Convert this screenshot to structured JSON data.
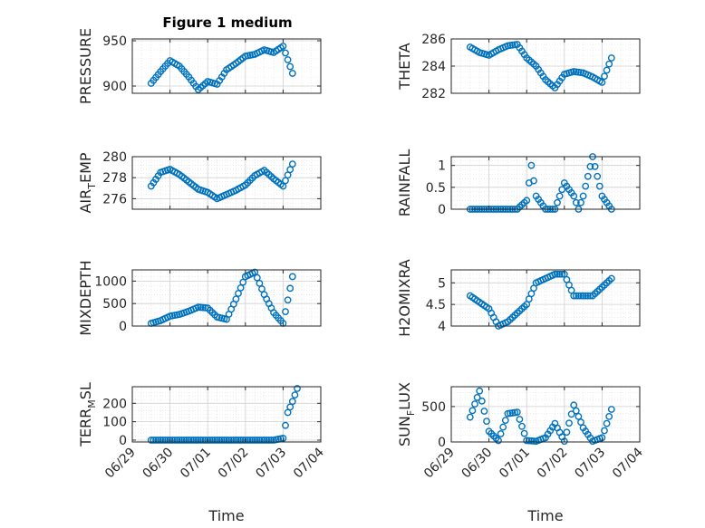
{
  "figure_title": "Figure 1 medium",
  "x_axis_label": "Time",
  "colors": {
    "marker": "#0072BD",
    "grid": "#dfdfdf",
    "axis": "#262626"
  },
  "chart_data": [
    {
      "type": "scatter",
      "ylabel": "PRESSURE",
      "ylabel_main": "PRESSURE",
      "ylabel_sub": "",
      "ylabel_tail": "",
      "ylim": [
        892,
        952
      ],
      "yticks": [
        900,
        950
      ],
      "ytick_labels": [
        "900",
        "950"
      ],
      "title": "Figure 1 medium",
      "x": [
        "06/29 12:00",
        "06/29 18:00",
        "06/30 00:00",
        "06/30 06:00",
        "06/30 12:00",
        "06/30 18:00",
        "07/01 00:00",
        "07/01 06:00",
        "07/01 12:00",
        "07/01 18:00",
        "07/02 00:00",
        "07/02 06:00",
        "07/02 12:00",
        "07/02 18:00",
        "07/03 00:00",
        "07/03 06:00"
      ],
      "y": [
        903,
        916,
        928,
        922,
        910,
        896,
        905,
        902,
        918,
        925,
        933,
        935,
        940,
        937,
        944,
        914
      ]
    },
    {
      "type": "scatter",
      "ylabel": "THETA",
      "ylabel_main": "THETA",
      "ylabel_sub": "",
      "ylabel_tail": "",
      "ylim": [
        282,
        286
      ],
      "yticks": [
        282,
        284,
        286
      ],
      "ytick_labels": [
        "282",
        "284",
        "286"
      ],
      "x": [
        "06/29 12:00",
        "06/29 18:00",
        "06/30 00:00",
        "06/30 06:00",
        "06/30 12:00",
        "06/30 18:00",
        "07/01 00:00",
        "07/01 06:00",
        "07/01 12:00",
        "07/01 18:00",
        "07/02 00:00",
        "07/02 06:00",
        "07/02 12:00",
        "07/02 18:00",
        "07/03 00:00",
        "07/03 06:00"
      ],
      "y": [
        285.4,
        285.0,
        284.8,
        285.2,
        285.5,
        285.6,
        284.6,
        284.0,
        283.0,
        282.4,
        283.4,
        283.6,
        283.5,
        283.2,
        282.8,
        284.6
      ]
    },
    {
      "type": "scatter",
      "ylabel": "AIR_TEMP",
      "ylabel_main": "AIR",
      "ylabel_sub": "T",
      "ylabel_tail": "EMP",
      "ylim": [
        275,
        280
      ],
      "yticks": [
        276,
        278,
        280
      ],
      "ytick_labels": [
        "276",
        "278",
        "280"
      ],
      "x": [
        "06/29 12:00",
        "06/29 18:00",
        "06/30 00:00",
        "06/30 06:00",
        "06/30 12:00",
        "06/30 18:00",
        "07/01 00:00",
        "07/01 06:00",
        "07/01 12:00",
        "07/01 18:00",
        "07/02 00:00",
        "07/02 06:00",
        "07/02 12:00",
        "07/02 18:00",
        "07/03 00:00",
        "07/03 06:00"
      ],
      "y": [
        277.2,
        278.5,
        278.8,
        278.3,
        277.6,
        276.9,
        276.6,
        276.0,
        276.4,
        276.8,
        277.3,
        278.2,
        278.7,
        277.9,
        277.2,
        279.3
      ]
    },
    {
      "type": "scatter",
      "ylabel": "RAINFALL",
      "ylabel_main": "RAINFALL",
      "ylabel_sub": "",
      "ylabel_tail": "",
      "ylim": [
        0,
        1.2
      ],
      "yticks": [
        0,
        0.5,
        1
      ],
      "ytick_labels": [
        "0",
        "0.5",
        "1"
      ],
      "x": [
        "06/29 12:00",
        "06/29 18:00",
        "06/30 00:00",
        "06/30 06:00",
        "06/30 12:00",
        "06/30 18:00",
        "07/01 00:00",
        "07/01 03:00",
        "07/01 06:00",
        "07/01 12:00",
        "07/01 18:00",
        "07/02 00:00",
        "07/02 06:00",
        "07/02 09:00",
        "07/02 12:00",
        "07/02 18:00",
        "07/03 00:00",
        "07/03 06:00"
      ],
      "y": [
        0,
        0,
        0,
        0,
        0,
        0,
        0.2,
        1.0,
        0.3,
        0,
        0,
        0.6,
        0.3,
        0,
        0.3,
        1.2,
        0.3,
        0
      ]
    },
    {
      "type": "scatter",
      "ylabel": "MIXDEPTH",
      "ylabel_main": "MIXDEPTH",
      "ylabel_sub": "",
      "ylabel_tail": "",
      "ylim": [
        0,
        1250
      ],
      "yticks": [
        0,
        500,
        1000
      ],
      "ytick_labels": [
        "0",
        "500",
        "1000"
      ],
      "x": [
        "06/29 12:00",
        "06/29 18:00",
        "06/30 00:00",
        "06/30 06:00",
        "06/30 12:00",
        "06/30 18:00",
        "07/01 00:00",
        "07/01 06:00",
        "07/01 12:00",
        "07/01 18:00",
        "07/02 00:00",
        "07/02 06:00",
        "07/02 12:00",
        "07/02 18:00",
        "07/03 00:00",
        "07/03 06:00"
      ],
      "y": [
        60,
        120,
        220,
        260,
        330,
        420,
        400,
        200,
        150,
        600,
        1100,
        1200,
        700,
        300,
        60,
        1100
      ]
    },
    {
      "type": "scatter",
      "ylabel": "H2OMIXRA",
      "ylabel_main": "H2OMIXRA",
      "ylabel_sub": "",
      "ylabel_tail": "",
      "ylim": [
        4,
        5.3
      ],
      "yticks": [
        4,
        4.5,
        5
      ],
      "ytick_labels": [
        "4",
        "4.5",
        "5"
      ],
      "x": [
        "06/29 12:00",
        "06/29 18:00",
        "06/30 00:00",
        "06/30 06:00",
        "06/30 12:00",
        "06/30 18:00",
        "07/01 00:00",
        "07/01 06:00",
        "07/01 12:00",
        "07/01 18:00",
        "07/02 00:00",
        "07/02 06:00",
        "07/02 12:00",
        "07/02 18:00",
        "07/03 00:00",
        "07/03 06:00"
      ],
      "y": [
        4.7,
        4.55,
        4.4,
        4.0,
        4.1,
        4.3,
        4.5,
        5.0,
        5.1,
        5.2,
        5.2,
        4.7,
        4.7,
        4.7,
        4.9,
        5.1
      ]
    },
    {
      "type": "scatter",
      "ylabel": "TERR_MSL",
      "ylabel_main": "TERR",
      "ylabel_sub": "M",
      "ylabel_tail": "SL",
      "ylim": [
        -10,
        290
      ],
      "yticks": [
        0,
        100,
        200
      ],
      "ytick_labels": [
        "0",
        "100",
        "200"
      ],
      "x": [
        "06/29 12:00",
        "06/29 18:00",
        "06/30 00:00",
        "06/30 06:00",
        "06/30 12:00",
        "06/30 18:00",
        "07/01 00:00",
        "07/01 06:00",
        "07/01 12:00",
        "07/01 18:00",
        "07/02 00:00",
        "07/02 06:00",
        "07/02 12:00",
        "07/02 18:00",
        "07/03 00:00",
        "07/03 03:00",
        "07/03 06:00",
        "07/03 09:00"
      ],
      "y": [
        0,
        0,
        0,
        0,
        0,
        0,
        0,
        0,
        0,
        0,
        0,
        0,
        0,
        0,
        10,
        150,
        210,
        280
      ]
    },
    {
      "type": "scatter",
      "ylabel": "SUN_FLUX",
      "ylabel_main": "SUN",
      "ylabel_sub": "F",
      "ylabel_tail": "LUX",
      "ylim": [
        0,
        780
      ],
      "yticks": [
        0,
        500
      ],
      "ytick_labels": [
        "0",
        "500"
      ],
      "x": [
        "06/29 12:00",
        "06/29 18:00",
        "06/30 00:00",
        "06/30 06:00",
        "06/30 12:00",
        "06/30 18:00",
        "07/01 00:00",
        "07/01 06:00",
        "07/01 12:00",
        "07/01 18:00",
        "07/02 00:00",
        "07/02 06:00",
        "07/02 12:00",
        "07/02 18:00",
        "07/03 00:00",
        "07/03 06:00"
      ],
      "y": [
        350,
        720,
        150,
        20,
        400,
        420,
        20,
        10,
        60,
        260,
        10,
        520,
        200,
        10,
        60,
        460
      ]
    }
  ],
  "x_ticks": {
    "dates": [
      "06/29",
      "06/30",
      "07/01",
      "07/02",
      "07/03",
      "07/04"
    ],
    "labels": [
      "06/29",
      "06/30",
      "07/01",
      "07/02",
      "07/03",
      "07/04"
    ]
  }
}
